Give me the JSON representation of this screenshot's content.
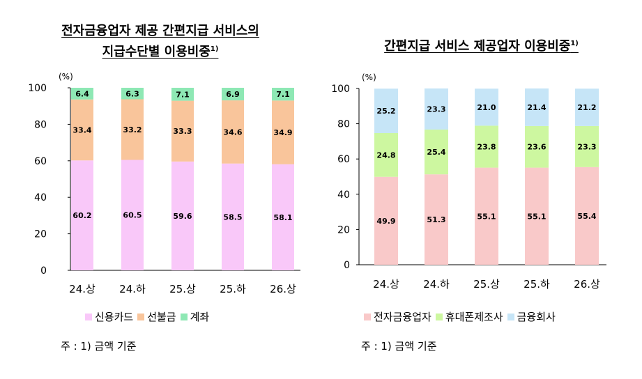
{
  "chart_data": [
    {
      "type": "bar",
      "stacked": true,
      "title_line1": "전자금융업자 제공 간편지급 서비스의",
      "title_line2": "지급수단별 이용비중",
      "title_sup": "1)",
      "unit": "(%)",
      "ylim": [
        0,
        100
      ],
      "yticks": [
        0,
        20,
        40,
        60,
        80,
        100
      ],
      "categories": [
        "24.상",
        "24.하",
        "25.상",
        "25.하",
        "26.상"
      ],
      "series": [
        {
          "name": "신용카드",
          "color": "#f9c8f9",
          "values": [
            60.2,
            60.5,
            59.6,
            58.5,
            58.1
          ]
        },
        {
          "name": "선불금",
          "color": "#f9c59b",
          "values": [
            33.4,
            33.2,
            33.3,
            34.6,
            34.9
          ]
        },
        {
          "name": "계좌",
          "color": "#8ee8b4",
          "values": [
            6.4,
            6.3,
            7.1,
            6.9,
            7.1
          ]
        }
      ],
      "legend_position": "bottom",
      "note": "주 : 1) 금액 기준"
    },
    {
      "type": "bar",
      "stacked": true,
      "title_line1": "간편지급 서비스 제공업자 이용비중",
      "title_sup": "1)",
      "unit": "(%)",
      "ylim": [
        0,
        100
      ],
      "yticks": [
        0,
        20,
        40,
        60,
        80,
        100
      ],
      "categories": [
        "24.상",
        "24.하",
        "25.상",
        "25.하",
        "26.상"
      ],
      "series": [
        {
          "name": "전자금융업자",
          "color": "#f9c9c9",
          "values": [
            49.9,
            51.3,
            55.1,
            55.1,
            55.4
          ]
        },
        {
          "name": "휴대폰제조사",
          "color": "#cdf7a0",
          "values": [
            24.8,
            25.4,
            23.8,
            23.6,
            23.3
          ]
        },
        {
          "name": "금융회사",
          "color": "#c6e5f7",
          "values": [
            25.2,
            23.3,
            21.0,
            21.4,
            21.2
          ]
        }
      ],
      "legend_position": "bottom",
      "note": "주 : 1) 금액 기준"
    }
  ]
}
